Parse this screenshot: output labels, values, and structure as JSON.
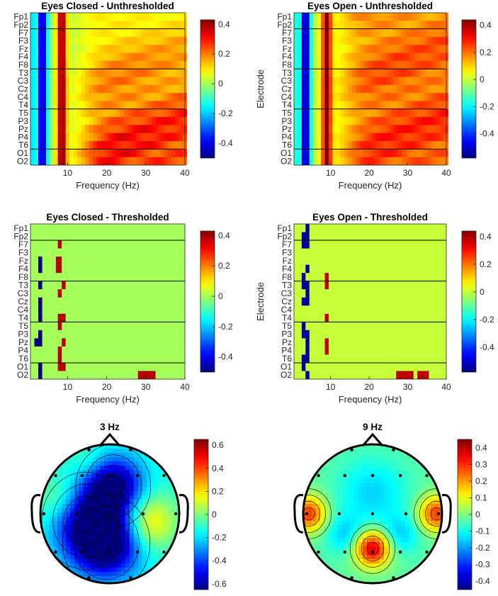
{
  "colormap": "jet",
  "chart_data": [
    {
      "id": "heatmap-eyes-closed-unthresholded",
      "type": "heatmap",
      "title": "Eyes Closed - Unthresholded",
      "xlabel": "Frequency (Hz)",
      "ylabel": "Electrode",
      "xlim": [
        1,
        40
      ],
      "xticks": [
        10,
        20,
        30,
        40
      ],
      "electrodes": [
        "Fp1",
        "Fp2",
        "F7",
        "F3",
        "Fz",
        "F4",
        "F8",
        "T3",
        "C3",
        "Cz",
        "C4",
        "T4",
        "T5",
        "P3",
        "Pz",
        "P4",
        "T6",
        "O1",
        "O2"
      ],
      "group_separators_after": [
        "Fp2",
        "F8",
        "T4",
        "T6"
      ],
      "colorbar": {
        "clim": [
          -0.5,
          0.43
        ],
        "ticks": [
          0.4,
          0.2,
          0,
          -0.2,
          -0.4
        ]
      },
      "description_pattern": {
        "low_freq_min_band_hz": [
          2,
          5
        ],
        "low_freq_min_value": -0.45,
        "alpha_peak_hz": 8.5,
        "alpha_peak_value": 0.42,
        "high_freq_value_frontal": 0.12,
        "high_freq_value_occipital": 0.35
      }
    },
    {
      "id": "heatmap-eyes-open-unthresholded",
      "type": "heatmap",
      "title": "Eyes Open - Unthresholded",
      "xlabel": "Frequency (Hz)",
      "ylabel": "Electrode",
      "xlim": [
        1,
        40
      ],
      "xticks": [
        10,
        20,
        30,
        40
      ],
      "electrodes": [
        "Fp1",
        "Fp2",
        "F7",
        "F3",
        "Fz",
        "F4",
        "F8",
        "T3",
        "C3",
        "Cz",
        "C4",
        "T4",
        "T5",
        "P3",
        "Pz",
        "P4",
        "T6",
        "O1",
        "O2"
      ],
      "group_separators_after": [
        "Fp2",
        "F8",
        "T4",
        "T6"
      ],
      "colorbar": {
        "clim": [
          -0.58,
          0.44
        ],
        "ticks": [
          0.4,
          0.2,
          0,
          -0.2,
          -0.4
        ]
      },
      "description_pattern": {
        "low_freq_min_band_hz": [
          2,
          5
        ],
        "low_freq_min_value": -0.55,
        "alpha_peak_hz": 9,
        "alpha_peak_value": 0.42,
        "high_freq_value_frontal": 0.22,
        "high_freq_value_occipital": 0.3
      }
    },
    {
      "id": "heatmap-eyes-closed-thresholded",
      "type": "heatmap",
      "title": "Eyes Closed - Thresholded",
      "xlabel": "Frequency (Hz)",
      "ylabel": "Electrode",
      "xlim": [
        1,
        40
      ],
      "xticks": [
        10,
        20,
        30,
        40
      ],
      "electrodes": [
        "Fp1",
        "Fp2",
        "F7",
        "F3",
        "Fz",
        "F4",
        "F8",
        "T3",
        "C3",
        "Cz",
        "C4",
        "T4",
        "T5",
        "P3",
        "Pz",
        "P4",
        "T6",
        "O1",
        "O2"
      ],
      "group_separators_after": [
        "Fp2",
        "F8",
        "T4",
        "T6"
      ],
      "colorbar": {
        "clim": [
          -0.5,
          0.43
        ],
        "ticks": [
          0.4,
          0.2,
          0,
          -0.2,
          -0.4
        ]
      },
      "background_value": 0,
      "significant_cells": [
        {
          "electrode": "F7",
          "hz": [
            7.5,
            8.5
          ],
          "value": 0.38
        },
        {
          "electrode": "Fz",
          "hz": [
            2.5,
            3.5
          ],
          "value": -0.5
        },
        {
          "electrode": "Fz",
          "hz": [
            7,
            8.5
          ],
          "value": 0.38
        },
        {
          "electrode": "F4",
          "hz": [
            2.5,
            3.5
          ],
          "value": -0.5
        },
        {
          "electrode": "F4",
          "hz": [
            7,
            8.5
          ],
          "value": 0.38
        },
        {
          "electrode": "T3",
          "hz": [
            2.5,
            3.5
          ],
          "value": -0.5
        },
        {
          "electrode": "T3",
          "hz": [
            8.5,
            9.5
          ],
          "value": 0.38
        },
        {
          "electrode": "C3",
          "hz": [
            7.5,
            8.5
          ],
          "value": 0.38
        },
        {
          "electrode": "Cz",
          "hz": [
            2.5,
            3.5
          ],
          "value": -0.5
        },
        {
          "electrode": "C4",
          "hz": [
            2.5,
            3.5
          ],
          "value": -0.5
        },
        {
          "electrode": "T4",
          "hz": [
            2.5,
            3.5
          ],
          "value": -0.5
        },
        {
          "electrode": "T4",
          "hz": [
            7.5,
            9.5
          ],
          "value": 0.38
        },
        {
          "electrode": "T5",
          "hz": [
            7.5,
            8.5
          ],
          "value": 0.38
        },
        {
          "electrode": "P3",
          "hz": [
            2.5,
            3.5
          ],
          "value": -0.5
        },
        {
          "electrode": "Pz",
          "hz": [
            1.5,
            3.5
          ],
          "value": -0.5
        },
        {
          "electrode": "Pz",
          "hz": [
            8.5,
            9.5
          ],
          "value": 0.38
        },
        {
          "electrode": "P4",
          "hz": [
            7.5,
            8.5
          ],
          "value": 0.38
        },
        {
          "electrode": "T6",
          "hz": [
            7.5,
            8.5
          ],
          "value": 0.38
        },
        {
          "electrode": "O1",
          "hz": [
            2.5,
            3.5
          ],
          "value": -0.5
        },
        {
          "electrode": "O1",
          "hz": [
            7.5,
            9.5
          ],
          "value": 0.38
        },
        {
          "electrode": "O2",
          "hz": [
            2.5,
            3.5
          ],
          "value": -0.5
        },
        {
          "electrode": "O2",
          "hz": [
            28,
            32.5
          ],
          "value": 0.38
        }
      ]
    },
    {
      "id": "heatmap-eyes-open-thresholded",
      "type": "heatmap",
      "title": "Eyes Open - Thresholded",
      "xlabel": "Frequency (Hz)",
      "ylabel": "Electrode",
      "xlim": [
        1,
        40
      ],
      "xticks": [
        10,
        20,
        30,
        40
      ],
      "electrodes": [
        "Fp1",
        "Fp2",
        "F7",
        "F3",
        "Fz",
        "F4",
        "F8",
        "T3",
        "C3",
        "Cz",
        "C4",
        "T4",
        "T5",
        "P3",
        "Pz",
        "P4",
        "T6",
        "O1",
        "O2"
      ],
      "group_separators_after": [
        "Fp2",
        "F8",
        "T4",
        "T6"
      ],
      "colorbar": {
        "clim": [
          -0.58,
          0.44
        ],
        "ticks": [
          0.4,
          0.2,
          0,
          -0.2,
          -0.4
        ]
      },
      "background_value": 0,
      "significant_cells": [
        {
          "electrode": "Fp1",
          "hz": [
            3.5,
            4.5
          ],
          "value": -0.55
        },
        {
          "electrode": "Fp2",
          "hz": [
            2.5,
            4.5
          ],
          "value": -0.55
        },
        {
          "electrode": "F7",
          "hz": [
            2.5,
            4.5
          ],
          "value": -0.55
        },
        {
          "electrode": "F4",
          "hz": [
            3.5,
            4.5
          ],
          "value": -0.55
        },
        {
          "electrode": "F8",
          "hz": [
            2.5,
            3.5
          ],
          "value": -0.55
        },
        {
          "electrode": "F8",
          "hz": [
            8.5,
            9.5
          ],
          "value": 0.38
        },
        {
          "electrode": "T3",
          "hz": [
            2.5,
            4.5
          ],
          "value": -0.55
        },
        {
          "electrode": "T3",
          "hz": [
            8.5,
            9.5
          ],
          "value": 0.38
        },
        {
          "electrode": "C3",
          "hz": [
            3.5,
            4.5
          ],
          "value": -0.55
        },
        {
          "electrode": "Cz",
          "hz": [
            2.5,
            4.5
          ],
          "value": -0.55
        },
        {
          "electrode": "T4",
          "hz": [
            8.5,
            9.5
          ],
          "value": 0.38
        },
        {
          "electrode": "T5",
          "hz": [
            2.5,
            3.5
          ],
          "value": -0.55
        },
        {
          "electrode": "P3",
          "hz": [
            2.5,
            4.5
          ],
          "value": -0.55
        },
        {
          "electrode": "Pz",
          "hz": [
            3.5,
            4.5
          ],
          "value": -0.55
        },
        {
          "electrode": "Pz",
          "hz": [
            8.5,
            9.5
          ],
          "value": 0.38
        },
        {
          "electrode": "P4",
          "hz": [
            3.5,
            4.5
          ],
          "value": -0.55
        },
        {
          "electrode": "P4",
          "hz": [
            8.5,
            9.5
          ],
          "value": 0.38
        },
        {
          "electrode": "T6",
          "hz": [
            2.5,
            4.5
          ],
          "value": -0.55
        },
        {
          "electrode": "O1",
          "hz": [
            2.5,
            3.5
          ],
          "value": -0.55
        },
        {
          "electrode": "O2",
          "hz": [
            3.5,
            4.5
          ],
          "value": -0.55
        },
        {
          "electrode": "O2",
          "hz": [
            27,
            31.5
          ],
          "value": 0.38
        },
        {
          "electrode": "O2",
          "hz": [
            32.5,
            35.5
          ],
          "value": 0.38
        }
      ]
    },
    {
      "id": "topomap-3hz",
      "type": "heatmap",
      "title": "3 Hz",
      "colorbar": {
        "clim": [
          -0.65,
          0.65
        ],
        "ticks": [
          0.6,
          0.4,
          0.2,
          0,
          -0.2,
          -0.4,
          -0.6
        ]
      },
      "peak_negative": {
        "near": "Pz",
        "value": -0.6
      },
      "peak_negative_secondary": {
        "near": "Fz",
        "value": -0.5
      },
      "peak_positive": {
        "near": "T4",
        "value": 0.05
      },
      "electrode_markers": 19
    },
    {
      "id": "topomap-9hz",
      "type": "heatmap",
      "title": "9 Hz",
      "colorbar": {
        "clim": [
          -0.45,
          0.45
        ],
        "ticks": [
          0.4,
          0.3,
          0.2,
          0.1,
          0,
          -0.1,
          -0.2,
          -0.3,
          -0.4
        ]
      },
      "peak_positive": {
        "near": "Pz",
        "value": 0.38
      },
      "peak_positive_secondary": [
        {
          "near": "T3",
          "value": 0.3
        },
        {
          "near": "T4",
          "value": 0.3
        }
      ],
      "background_value": 0,
      "electrode_markers": 19
    }
  ]
}
